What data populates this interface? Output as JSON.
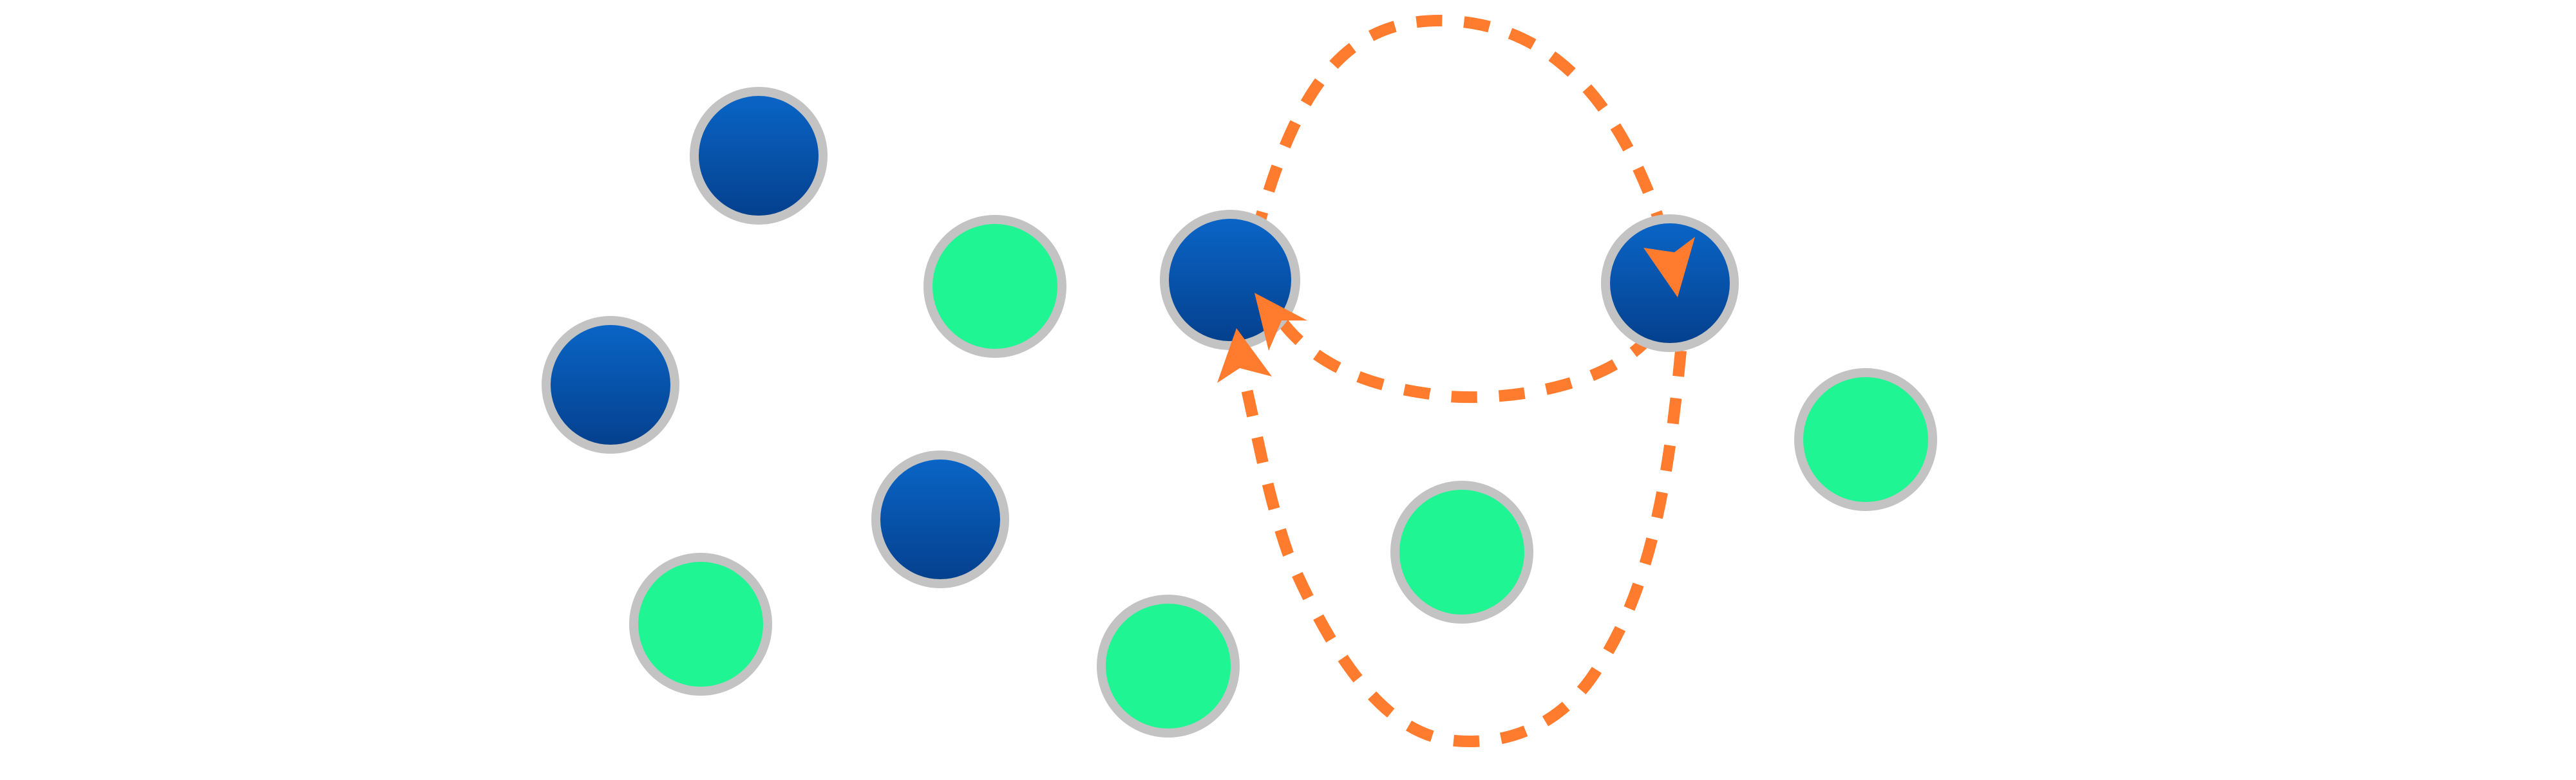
{
  "colors": {
    "background": "#ffffff",
    "node_blue_top": "#0a66c8",
    "node_blue_bottom": "#043f8c",
    "node_green": "#1ff593",
    "node_ring": "#c3c3c3",
    "arrow": "#ff7b2e"
  },
  "nodes": [
    {
      "id": "blue-1",
      "color": "blue"
    },
    {
      "id": "green-1",
      "color": "green"
    },
    {
      "id": "blue-2",
      "color": "blue"
    },
    {
      "id": "blue-3",
      "color": "blue"
    },
    {
      "id": "green-2",
      "color": "green"
    },
    {
      "id": "blue-4",
      "color": "blue"
    },
    {
      "id": "green-3",
      "color": "green"
    },
    {
      "id": "blue-5",
      "color": "blue"
    },
    {
      "id": "green-4",
      "color": "green"
    },
    {
      "id": "green-5",
      "color": "green"
    }
  ],
  "edges": [
    {
      "id": "arc-top",
      "from": "blue-3",
      "to": "blue-5",
      "style": "dashed",
      "arrowhead": "end"
    },
    {
      "id": "arc-middle",
      "from": "blue-5",
      "to": "blue-3",
      "style": "dashed",
      "arrowhead": "end"
    },
    {
      "id": "arc-bottom",
      "from": "blue-5",
      "to": "blue-3",
      "style": "dashed",
      "arrowhead": "end"
    }
  ]
}
